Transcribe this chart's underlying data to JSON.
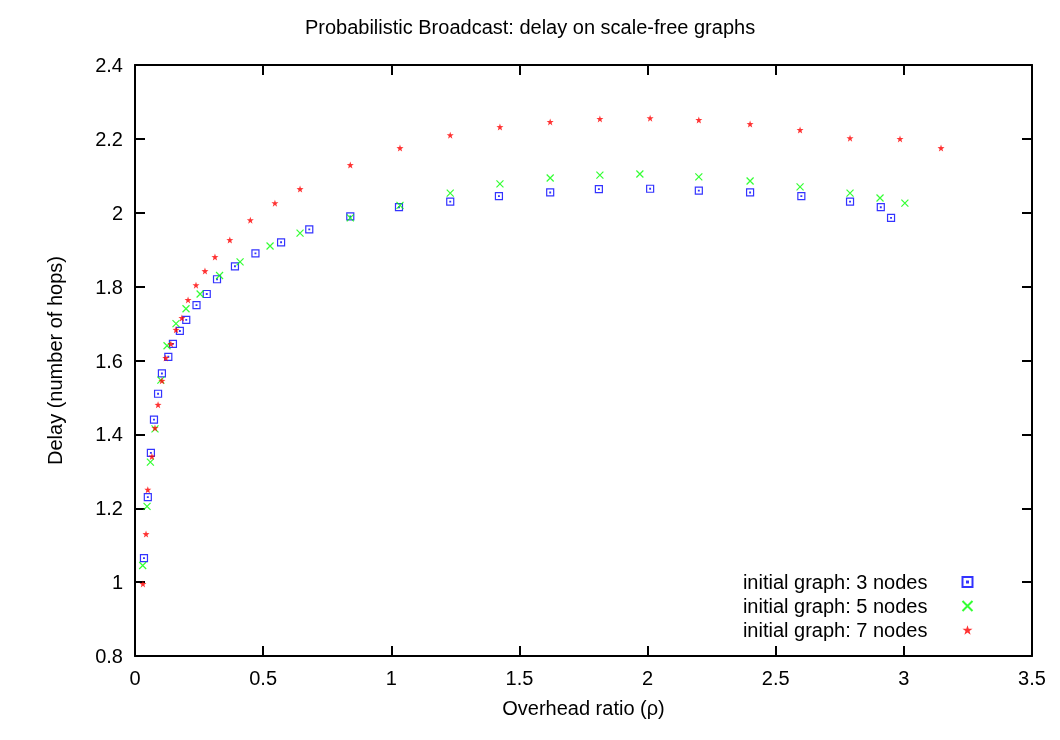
{
  "chart_data": {
    "type": "scatter",
    "title": "Probabilistic Broadcast: delay on scale-free graphs",
    "xlabel": "Overhead ratio (ρ)",
    "ylabel": "Delay (number of hops)",
    "xlim": [
      0,
      3.5
    ],
    "xticks": [
      0,
      0.5,
      1,
      1.5,
      2,
      2.5,
      3,
      3.5
    ],
    "ylim": [
      0.8,
      2.4
    ],
    "yticks": [
      0.8,
      1,
      1.2,
      1.4,
      1.6,
      1.8,
      2,
      2.2,
      2.4
    ],
    "grid": false,
    "legend": "bottom right",
    "series": [
      {
        "name": "initial graph: 3 nodes",
        "color": "#0000ff",
        "marker": "square",
        "x": [
          0.035,
          0.05,
          0.062,
          0.074,
          0.09,
          0.105,
          0.13,
          0.148,
          0.175,
          0.2,
          0.24,
          0.28,
          0.32,
          0.39,
          0.47,
          0.57,
          0.68,
          0.84,
          1.03,
          1.23,
          1.42,
          1.62,
          1.81,
          2.01,
          2.2,
          2.4,
          2.6,
          2.79,
          2.91,
          2.95
        ],
        "values": [
          1.065,
          1.23,
          1.35,
          1.44,
          1.51,
          1.565,
          1.61,
          1.645,
          1.68,
          1.71,
          1.75,
          1.78,
          1.82,
          1.855,
          1.89,
          1.92,
          1.955,
          1.99,
          2.015,
          2.03,
          2.045,
          2.055,
          2.064,
          2.065,
          2.06,
          2.055,
          2.045,
          2.03,
          2.015,
          1.986
        ]
      },
      {
        "name": "initial graph: 5 nodes",
        "color": "#00ff00",
        "marker": "cross",
        "x": [
          0.03,
          0.047,
          0.06,
          0.078,
          0.101,
          0.125,
          0.16,
          0.199,
          0.254,
          0.33,
          0.41,
          0.527,
          0.644,
          0.84,
          1.034,
          1.23,
          1.424,
          1.62,
          1.814,
          1.97,
          2.2,
          2.4,
          2.595,
          2.79,
          2.907,
          3.004
        ],
        "values": [
          1.045,
          1.205,
          1.325,
          1.415,
          1.547,
          1.64,
          1.7,
          1.74,
          1.78,
          1.83,
          1.867,
          1.91,
          1.945,
          1.986,
          2.02,
          2.053,
          2.078,
          2.094,
          2.102,
          2.105,
          2.097,
          2.086,
          2.07,
          2.053,
          2.04,
          2.026
        ]
      },
      {
        "name": "initial graph: 7 nodes",
        "color": "#ff0000",
        "marker": "star",
        "x": [
          0.031,
          0.043,
          0.05,
          0.066,
          0.078,
          0.09,
          0.105,
          0.12,
          0.14,
          0.16,
          0.183,
          0.207,
          0.238,
          0.273,
          0.312,
          0.37,
          0.45,
          0.546,
          0.644,
          0.84,
          1.034,
          1.23,
          1.424,
          1.62,
          1.814,
          2.01,
          2.2,
          2.4,
          2.595,
          2.79,
          2.985,
          3.145
        ],
        "values": [
          0.995,
          1.13,
          1.25,
          1.34,
          1.417,
          1.48,
          1.545,
          1.607,
          1.645,
          1.683,
          1.715,
          1.764,
          1.804,
          1.842,
          1.88,
          1.926,
          1.98,
          2.026,
          2.064,
          2.129,
          2.175,
          2.21,
          2.232,
          2.246,
          2.254,
          2.256,
          2.251,
          2.24,
          2.224,
          2.202,
          2.2,
          2.175
        ]
      }
    ]
  }
}
